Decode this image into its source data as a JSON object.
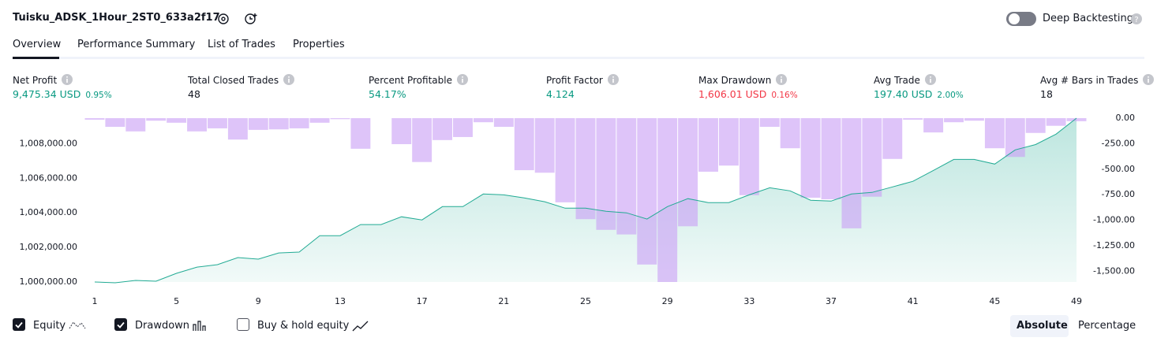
{
  "header": {
    "title": "Tuisku_ADSK_1Hour_2ST0_633a2f17",
    "deep_backtesting": "Deep Backtesting"
  },
  "tabs": [
    "Overview",
    "Performance Summary",
    "List of Trades",
    "Properties"
  ],
  "stats": [
    {
      "label": "Net Profit",
      "value": "9,475.34 USD",
      "percent": "0.95%",
      "color": "#089981"
    },
    {
      "label": "Total Closed Trades",
      "value": "48",
      "color": "#131722"
    },
    {
      "label": "Percent Profitable",
      "value": "54.17%",
      "color": "#089981"
    },
    {
      "label": "Profit Factor",
      "value": "4.124",
      "color": "#089981"
    },
    {
      "label": "Max Drawdown",
      "value": "1,606.01 USD",
      "percent": "0.16%",
      "color": "#f23645"
    },
    {
      "label": "Avg Trade",
      "value": "197.40 USD",
      "percent": "2.00%",
      "color": "#089981"
    },
    {
      "label": "Avg # Bars in Trades",
      "value": "18",
      "color": "#131722"
    }
  ],
  "chart_data": {
    "type": "equity-drawdown",
    "x": [
      1,
      2,
      3,
      4,
      5,
      6,
      7,
      8,
      9,
      10,
      11,
      12,
      13,
      14,
      15,
      16,
      17,
      18,
      19,
      20,
      21,
      22,
      23,
      24,
      25,
      26,
      27,
      28,
      29,
      30,
      31,
      32,
      33,
      34,
      35,
      36,
      37,
      38,
      39,
      40,
      41,
      42,
      43,
      44,
      45,
      46,
      47,
      48,
      49
    ],
    "series": [
      {
        "name": "Equity",
        "color": "#22ab94",
        "values": [
          1000000,
          999955,
          1000090,
          1000045,
          1000500,
          1000860,
          1001000,
          1001410,
          1001320,
          1001680,
          1001730,
          1002680,
          1002680,
          1003320,
          1003320,
          1003770,
          1003590,
          1004360,
          1004360,
          1005090,
          1005040,
          1004860,
          1004640,
          1004270,
          1004270,
          1004090,
          1004000,
          1003640,
          1004360,
          1004820,
          1004590,
          1004590,
          1005040,
          1005450,
          1005270,
          1004730,
          1004680,
          1005090,
          1005180,
          1005500,
          1005820,
          1006450,
          1007090,
          1007090,
          1006820,
          1007640,
          1007950,
          1008550,
          1009475
        ]
      },
      {
        "name": "Drawdown",
        "color": "#c99ff5",
        "axis": "y2",
        "values": [
          -15,
          -85,
          -130,
          -25,
          -45,
          -130,
          -100,
          -210,
          -115,
          -110,
          -100,
          -45,
          -10,
          -300,
          0,
          -255,
          -430,
          -215,
          -185,
          -40,
          -85,
          -510,
          -535,
          -825,
          -990,
          -1095,
          -1140,
          -1435,
          -1606.01,
          -1060,
          -525,
          -465,
          -755,
          -85,
          -295,
          -780,
          -795,
          -1080,
          -770,
          -400,
          -15,
          -140,
          -40,
          -25,
          -295,
          -380,
          -145,
          -75,
          -30
        ]
      }
    ],
    "xlim": [
      0.5,
      49.5
    ],
    "xticks": [
      1,
      5,
      9,
      13,
      17,
      21,
      25,
      29,
      33,
      37,
      41,
      45,
      49
    ],
    "ylim": [
      1000000,
      1009475
    ],
    "yticks": [
      {
        "value": 1000000,
        "label": "1,000,000.00"
      },
      {
        "value": 1002000,
        "label": "1,002,000.00"
      },
      {
        "value": 1004000,
        "label": "1,004,000.00"
      },
      {
        "value": 1006000,
        "label": "1,006,000.00"
      },
      {
        "value": 1008000,
        "label": "1,008,000.00"
      }
    ],
    "y2lim": [
      -1606.01,
      0
    ],
    "y2ticks": [
      {
        "value": 0,
        "label": "0.00"
      },
      {
        "value": -250,
        "label": "-250.00"
      },
      {
        "value": -500,
        "label": "-500.00"
      },
      {
        "value": -750,
        "label": "-750.00"
      },
      {
        "value": -1000,
        "label": "-1,000.00"
      },
      {
        "value": -1250,
        "label": "-1,250.00"
      },
      {
        "value": -1500,
        "label": "-1,500.00"
      }
    ]
  },
  "legend": {
    "buy_hold": "Buy & hold equity",
    "checked": [
      true,
      true,
      false
    ]
  },
  "view_buttons": [
    "Absolute",
    "Percentage"
  ]
}
